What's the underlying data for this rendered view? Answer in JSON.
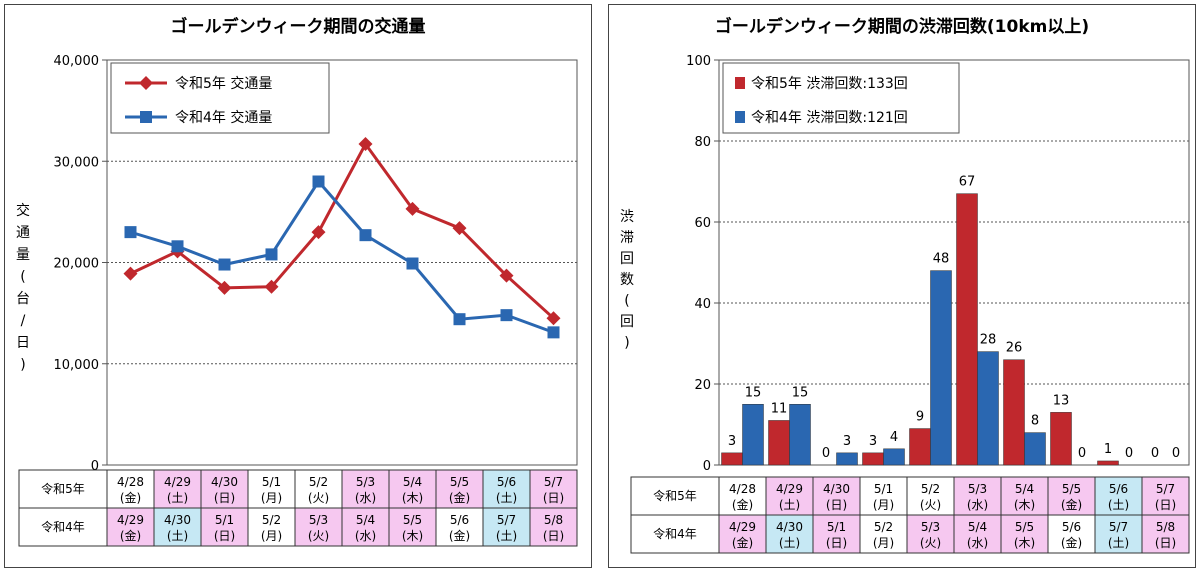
{
  "left": {
    "chart_data": {
      "type": "line",
      "title": "ゴールデンウィーク期間の交通量",
      "ylabel": "交通量(台/日)",
      "ylim": [
        0,
        40000
      ],
      "yticks": [
        "0",
        "10,000",
        "20,000",
        "30,000",
        "40,000"
      ],
      "grid": "horizontal",
      "legend_placement": "top-left",
      "x_count": 10,
      "series": [
        {
          "name": "令和5年 交通量",
          "color": "#c0282d",
          "marker": "diamond",
          "values": [
            18900,
            21100,
            17500,
            17600,
            23000,
            31700,
            25300,
            23400,
            18700,
            14500
          ]
        },
        {
          "name": "令和4年 交通量",
          "color": "#2a67b1",
          "marker": "square",
          "values": [
            23000,
            21600,
            19800,
            20800,
            28000,
            22700,
            19900,
            14400,
            14800,
            13100
          ]
        }
      ]
    },
    "table": {
      "rows": [
        {
          "name": "令和5年",
          "cells": [
            {
              "date": "4/28",
              "day": "(金)",
              "bg": "#ffffff"
            },
            {
              "date": "4/29",
              "day": "(土)",
              "bg": "#f6c8f0"
            },
            {
              "date": "4/30",
              "day": "(日)",
              "bg": "#f6c8f0"
            },
            {
              "date": "5/1",
              "day": "(月)",
              "bg": "#ffffff"
            },
            {
              "date": "5/2",
              "day": "(火)",
              "bg": "#ffffff"
            },
            {
              "date": "5/3",
              "day": "(水)",
              "bg": "#f6c8f0"
            },
            {
              "date": "5/4",
              "day": "(木)",
              "bg": "#f6c8f0"
            },
            {
              "date": "5/5",
              "day": "(金)",
              "bg": "#f6c8f0"
            },
            {
              "date": "5/6",
              "day": "(土)",
              "bg": "#c6e8f4"
            },
            {
              "date": "5/7",
              "day": "(日)",
              "bg": "#f6c8f0"
            }
          ]
        },
        {
          "name": "令和4年",
          "cells": [
            {
              "date": "4/29",
              "day": "(金)",
              "bg": "#f6c8f0"
            },
            {
              "date": "4/30",
              "day": "(土)",
              "bg": "#c6e8f4"
            },
            {
              "date": "5/1",
              "day": "(日)",
              "bg": "#f6c8f0"
            },
            {
              "date": "5/2",
              "day": "(月)",
              "bg": "#ffffff"
            },
            {
              "date": "5/3",
              "day": "(火)",
              "bg": "#f6c8f0"
            },
            {
              "date": "5/4",
              "day": "(水)",
              "bg": "#f6c8f0"
            },
            {
              "date": "5/5",
              "day": "(木)",
              "bg": "#f6c8f0"
            },
            {
              "date": "5/6",
              "day": "(金)",
              "bg": "#ffffff"
            },
            {
              "date": "5/7",
              "day": "(土)",
              "bg": "#c6e8f4"
            },
            {
              "date": "5/8",
              "day": "(日)",
              "bg": "#f6c8f0"
            }
          ]
        }
      ]
    }
  },
  "right": {
    "chart_data": {
      "type": "bar",
      "title": "ゴールデンウィーク期間の渋滞回数(10km以上)",
      "ylabel": "渋滞回数(回)",
      "ylim": [
        0,
        100
      ],
      "yticks": [
        "0",
        "20",
        "40",
        "60",
        "80",
        "100"
      ],
      "grid": "horizontal",
      "legend_placement": "top-left",
      "x_count": 10,
      "series": [
        {
          "name": "令和5年 渋滞回数:133回",
          "color": "#c0282d",
          "values": [
            3,
            11,
            0,
            3,
            9,
            67,
            26,
            13,
            1,
            0
          ],
          "labels": [
            "3",
            "11",
            "0",
            "3",
            "9",
            "67",
            "26",
            "13",
            "1",
            "0"
          ]
        },
        {
          "name": "令和4年 渋滞回数:121回",
          "color": "#2a67b1",
          "values": [
            15,
            15,
            3,
            4,
            48,
            28,
            8,
            0,
            0,
            0
          ],
          "labels": [
            "15",
            "15",
            "3",
            "4",
            "48",
            "28",
            "8",
            "0",
            "0",
            "0"
          ]
        }
      ]
    },
    "table": {
      "rows": [
        {
          "name": "令和5年",
          "cells": [
            {
              "date": "4/28",
              "day": "(金)",
              "bg": "#ffffff"
            },
            {
              "date": "4/29",
              "day": "(土)",
              "bg": "#f6c8f0"
            },
            {
              "date": "4/30",
              "day": "(日)",
              "bg": "#f6c8f0"
            },
            {
              "date": "5/1",
              "day": "(月)",
              "bg": "#ffffff"
            },
            {
              "date": "5/2",
              "day": "(火)",
              "bg": "#ffffff"
            },
            {
              "date": "5/3",
              "day": "(水)",
              "bg": "#f6c8f0"
            },
            {
              "date": "5/4",
              "day": "(木)",
              "bg": "#f6c8f0"
            },
            {
              "date": "5/5",
              "day": "(金)",
              "bg": "#f6c8f0"
            },
            {
              "date": "5/6",
              "day": "(土)",
              "bg": "#c6e8f4"
            },
            {
              "date": "5/7",
              "day": "(日)",
              "bg": "#f6c8f0"
            }
          ]
        },
        {
          "name": "令和4年",
          "cells": [
            {
              "date": "4/29",
              "day": "(金)",
              "bg": "#f6c8f0"
            },
            {
              "date": "4/30",
              "day": "(土)",
              "bg": "#c6e8f4"
            },
            {
              "date": "5/1",
              "day": "(日)",
              "bg": "#f6c8f0"
            },
            {
              "date": "5/2",
              "day": "(月)",
              "bg": "#ffffff"
            },
            {
              "date": "5/3",
              "day": "(火)",
              "bg": "#f6c8f0"
            },
            {
              "date": "5/4",
              "day": "(水)",
              "bg": "#f6c8f0"
            },
            {
              "date": "5/5",
              "day": "(木)",
              "bg": "#f6c8f0"
            },
            {
              "date": "5/6",
              "day": "(金)",
              "bg": "#ffffff"
            },
            {
              "date": "5/7",
              "day": "(土)",
              "bg": "#c6e8f4"
            },
            {
              "date": "5/8",
              "day": "(日)",
              "bg": "#f6c8f0"
            }
          ]
        }
      ]
    }
  }
}
